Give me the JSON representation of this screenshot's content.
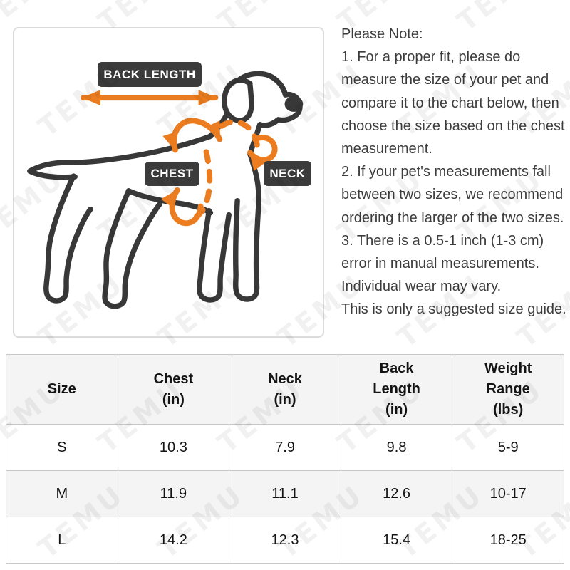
{
  "brand_watermark": {
    "text": "TEMU"
  },
  "diagram": {
    "labels": {
      "back_length": "BACK LENGTH",
      "chest": "CHEST",
      "neck": "NECK"
    }
  },
  "notes": {
    "lines": [
      "Please Note:",
      "1. For a proper fit, please do",
      "measure the size of your pet and",
      "compare it to the chart below, then",
      "choose the size based on the chest",
      "measurement.",
      "2. If your pet's measurements fall",
      "between two sizes, we recommend",
      "ordering the larger of the two sizes.",
      "3. There is a 0.5-1 inch (1-3 cm)",
      "error in manual measurements.",
      "Individual wear may vary.",
      "This is only a suggested size guide."
    ]
  },
  "size_chart": {
    "headers": [
      [
        "Size"
      ],
      [
        "Chest",
        "(in)"
      ],
      [
        "Neck",
        "(in)"
      ],
      [
        "Back",
        "Length",
        "(in)"
      ],
      [
        "Weight",
        "Range",
        "(lbs)"
      ]
    ],
    "rows": [
      [
        "S",
        "10.3",
        "7.9",
        "9.8",
        "5-9"
      ],
      [
        "M",
        "11.9",
        "11.1",
        "12.6",
        "10-17"
      ],
      [
        "L",
        "14.2",
        "12.3",
        "15.4",
        "18-25"
      ]
    ]
  },
  "colors": {
    "accent": "#EB7D20",
    "ink": "#383838",
    "badge_bg": "#3B3B3B",
    "table_border": "#C8C8C8",
    "row_alt_bg": "#F4F4F4",
    "note_text": "#3C3C3C",
    "panel_border": "#DCDCDC",
    "watermark": "rgba(0,0,0,0.055)"
  }
}
